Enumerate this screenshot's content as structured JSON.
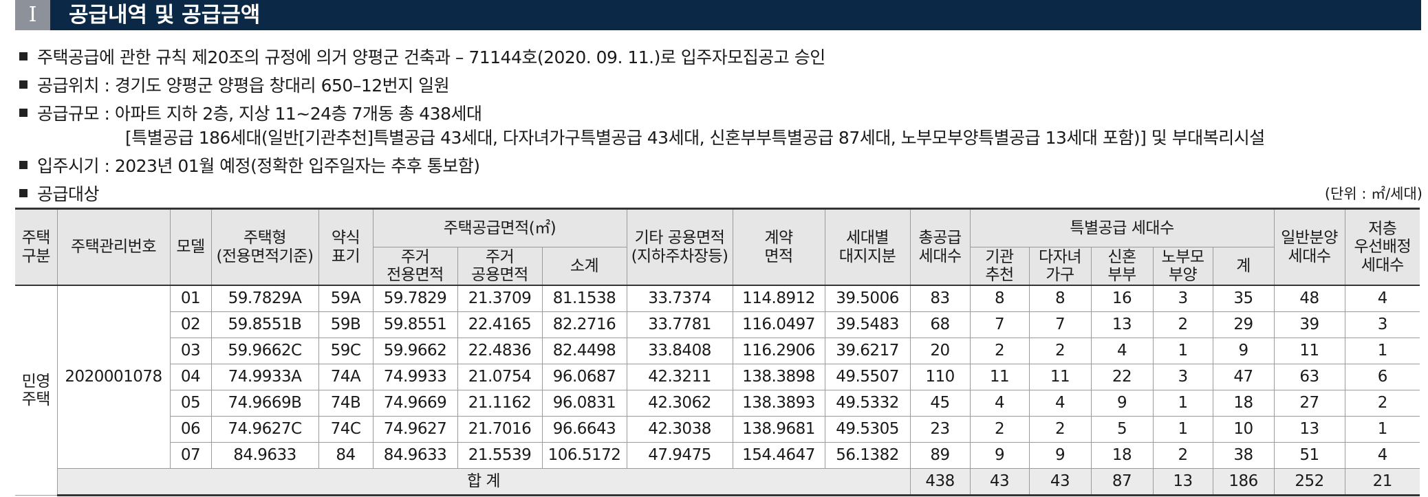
{
  "header": {
    "number": "I",
    "title": "공급내역 및 공급금액"
  },
  "bullets": [
    {
      "text": "주택공급에 관한 규칙 제20조의 규정에 의거 양평군 건축과 – 71144호(2020. 09. 11.)로 입주자모집공고 승인"
    },
    {
      "text": "공급위치 : 경기도 양평군 양평읍 창대리 650–12번지 일원"
    },
    {
      "text": "공급규모 : 아파트 지하 2층, 지상 11~24층 7개동 총 438세대",
      "detail": "[특별공급 186세대(일반[기관추천]특별공급 43세대, 다자녀가구특별공급 43세대, 신혼부부특별공급 87세대, 노부모부양특별공급 13세대 포함)] 및 부대복리시설"
    },
    {
      "text": "입주시기 : 2023년 01월 예정(정확한 입주일자는 추후 통보함)"
    },
    {
      "text": "공급대상"
    }
  ],
  "unit": "(단위 : ㎡/세대)",
  "table": {
    "header_row1": [
      "주택\n구분",
      "주택관리번호",
      "모델",
      "주택형\n(전용면적기준)",
      "약식\n표기",
      "주택공급면적(㎡)",
      "기타 공용면적\n(지하주차장등)",
      "계약\n면적",
      "세대별\n대지지분",
      "총공급\n세대수",
      "특별공급 세대수",
      "일반분양\n세대수",
      "저층\n우선배정\n세대수"
    ],
    "header_row2": [
      "주거\n전용면적",
      "주거\n공용면적",
      "소계",
      "기관\n추천",
      "다자녀\n가구",
      "신혼\n부부",
      "노부모\n부양",
      "계"
    ],
    "group": "민영\n주택",
    "code": "2020001078",
    "rows": [
      [
        "01",
        "59.7829A",
        "59A",
        59.7829,
        21.3709,
        81.1538,
        33.7374,
        114.8912,
        39.5006,
        83,
        8,
        8,
        16,
        3,
        35,
        48,
        4
      ],
      [
        "02",
        "59.8551B",
        "59B",
        59.8551,
        22.4165,
        82.2716,
        33.7781,
        116.0497,
        39.5483,
        68,
        7,
        7,
        13,
        2,
        29,
        39,
        3
      ],
      [
        "03",
        "59.9662C",
        "59C",
        59.9662,
        22.4836,
        82.4498,
        33.8408,
        116.2906,
        39.6217,
        20,
        2,
        2,
        4,
        1,
        9,
        11,
        1
      ],
      [
        "04",
        "74.9933A",
        "74A",
        74.9933,
        21.0754,
        96.0687,
        42.3211,
        138.3898,
        49.5507,
        110,
        11,
        11,
        22,
        3,
        47,
        63,
        6
      ],
      [
        "05",
        "74.9669B",
        "74B",
        74.9669,
        21.1162,
        96.0831,
        42.3062,
        138.3893,
        49.5332,
        45,
        4,
        4,
        9,
        1,
        18,
        27,
        2
      ],
      [
        "06",
        "74.9627C",
        "74C",
        74.9627,
        21.7016,
        96.6643,
        42.3038,
        138.9681,
        49.5305,
        23,
        2,
        2,
        5,
        1,
        10,
        13,
        1
      ],
      [
        "07",
        "84.9633",
        "84",
        84.9633,
        21.5539,
        106.5172,
        47.9475,
        154.4647,
        56.1382,
        89,
        9,
        9,
        18,
        2,
        38,
        51,
        4
      ]
    ],
    "total": {
      "label": "합  계",
      "values": [
        438,
        43,
        43,
        87,
        13,
        186,
        252,
        21
      ]
    }
  }
}
